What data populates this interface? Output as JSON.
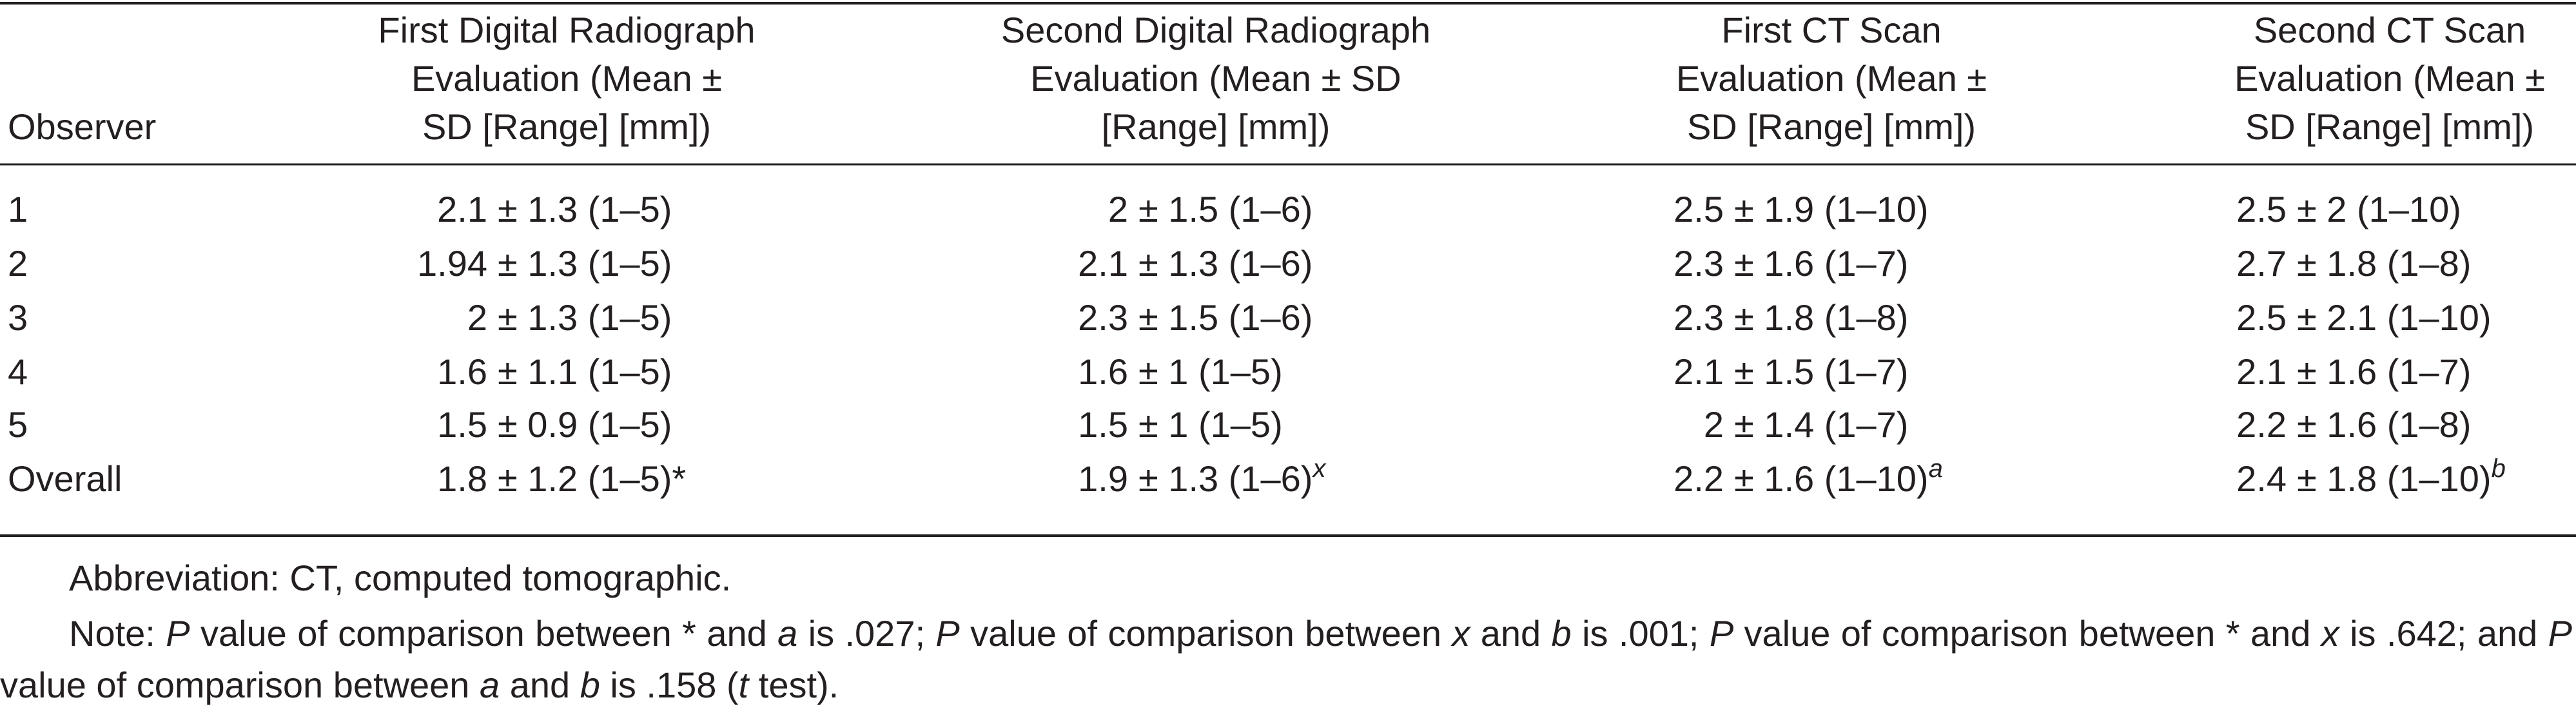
{
  "table": {
    "headers": [
      [
        "Observer"
      ],
      [
        "First Digital Radiograph",
        "Evaluation (Mean ±",
        "SD [Range] [mm])"
      ],
      [
        "Second Digital Radiograph",
        "Evaluation (Mean ± SD",
        "[Range] [mm])"
      ],
      [
        "First CT Scan",
        "Evaluation (Mean ±",
        "SD [Range] [mm])"
      ],
      [
        "Second CT Scan",
        "Evaluation (Mean ±",
        "SD [Range] [mm])"
      ]
    ],
    "rows": [
      [
        "1",
        {
          "mean": "2.1",
          "rest": "± 1.3 (1–5)"
        },
        {
          "mean": "2",
          "rest": "± 1.5 (1–6)"
        },
        {
          "mean": "2.5",
          "rest": "± 1.9 (1–10)"
        },
        {
          "mean": "2.5",
          "rest": "± 2 (1–10)"
        }
      ],
      [
        "2",
        {
          "mean": "1.94",
          "rest": "± 1.3 (1–5)"
        },
        {
          "mean": "2.1",
          "rest": "± 1.3 (1–6)"
        },
        {
          "mean": "2.3",
          "rest": "± 1.6 (1–7)"
        },
        {
          "mean": "2.7",
          "rest": "± 1.8 (1–8)"
        }
      ],
      [
        "3",
        {
          "mean": "2",
          "rest": "± 1.3 (1–5)"
        },
        {
          "mean": "2.3",
          "rest": "± 1.5 (1–6)"
        },
        {
          "mean": "2.3",
          "rest": "± 1.8 (1–8)"
        },
        {
          "mean": "2.5",
          "rest": "± 2.1 (1–10)"
        }
      ],
      [
        "4",
        {
          "mean": "1.6",
          "rest": "± 1.1 (1–5)"
        },
        {
          "mean": "1.6",
          "rest": "± 1 (1–5)"
        },
        {
          "mean": "2.1",
          "rest": "± 1.5 (1–7)"
        },
        {
          "mean": "2.1",
          "rest": "± 1.6 (1–7)"
        }
      ],
      [
        "5",
        {
          "mean": "1.5",
          "rest": "± 0.9 (1–5)"
        },
        {
          "mean": "1.5",
          "rest": "± 1 (1–5)"
        },
        {
          "mean": "2",
          "rest": "± 1.4 (1–7)"
        },
        {
          "mean": "2.2",
          "rest": "± 1.6 (1–8)"
        }
      ],
      [
        "Overall",
        {
          "mean": "1.8",
          "rest": "± 1.2 (1–5)*"
        },
        {
          "mean": "1.9",
          "rest": "± 1.3 (1–6)",
          "sup": "x"
        },
        {
          "mean": "2.2",
          "rest": "± 1.6 (1–10)",
          "sup": "a"
        },
        {
          "mean": "2.4",
          "rest": "± 1.8 (1–10)",
          "sup": "b"
        }
      ]
    ]
  },
  "footnotes": {
    "abbreviation": "Abbreviation: CT, computed tomographic.",
    "note": [
      {
        "text": "Note: "
      },
      {
        "text": "P",
        "italic": true
      },
      {
        "text": " value of comparison between * and "
      },
      {
        "text": "a",
        "italic": true
      },
      {
        "text": " is .027; "
      },
      {
        "text": "P",
        "italic": true
      },
      {
        "text": " value of comparison between "
      },
      {
        "text": "x",
        "italic": true
      },
      {
        "text": " and "
      },
      {
        "text": "b",
        "italic": true
      },
      {
        "text": " is .001; "
      },
      {
        "text": "P",
        "italic": true
      },
      {
        "text": " value of comparison between * and "
      },
      {
        "text": "x",
        "italic": true
      },
      {
        "text": " is .642; and "
      },
      {
        "text": "P",
        "italic": true
      },
      {
        "text": " value of comparison between "
      },
      {
        "text": "a",
        "italic": true
      },
      {
        "text": " and "
      },
      {
        "text": "b",
        "italic": true
      },
      {
        "text": " is .158 ("
      },
      {
        "text": "t",
        "italic": true
      },
      {
        "text": " test)."
      }
    ]
  }
}
